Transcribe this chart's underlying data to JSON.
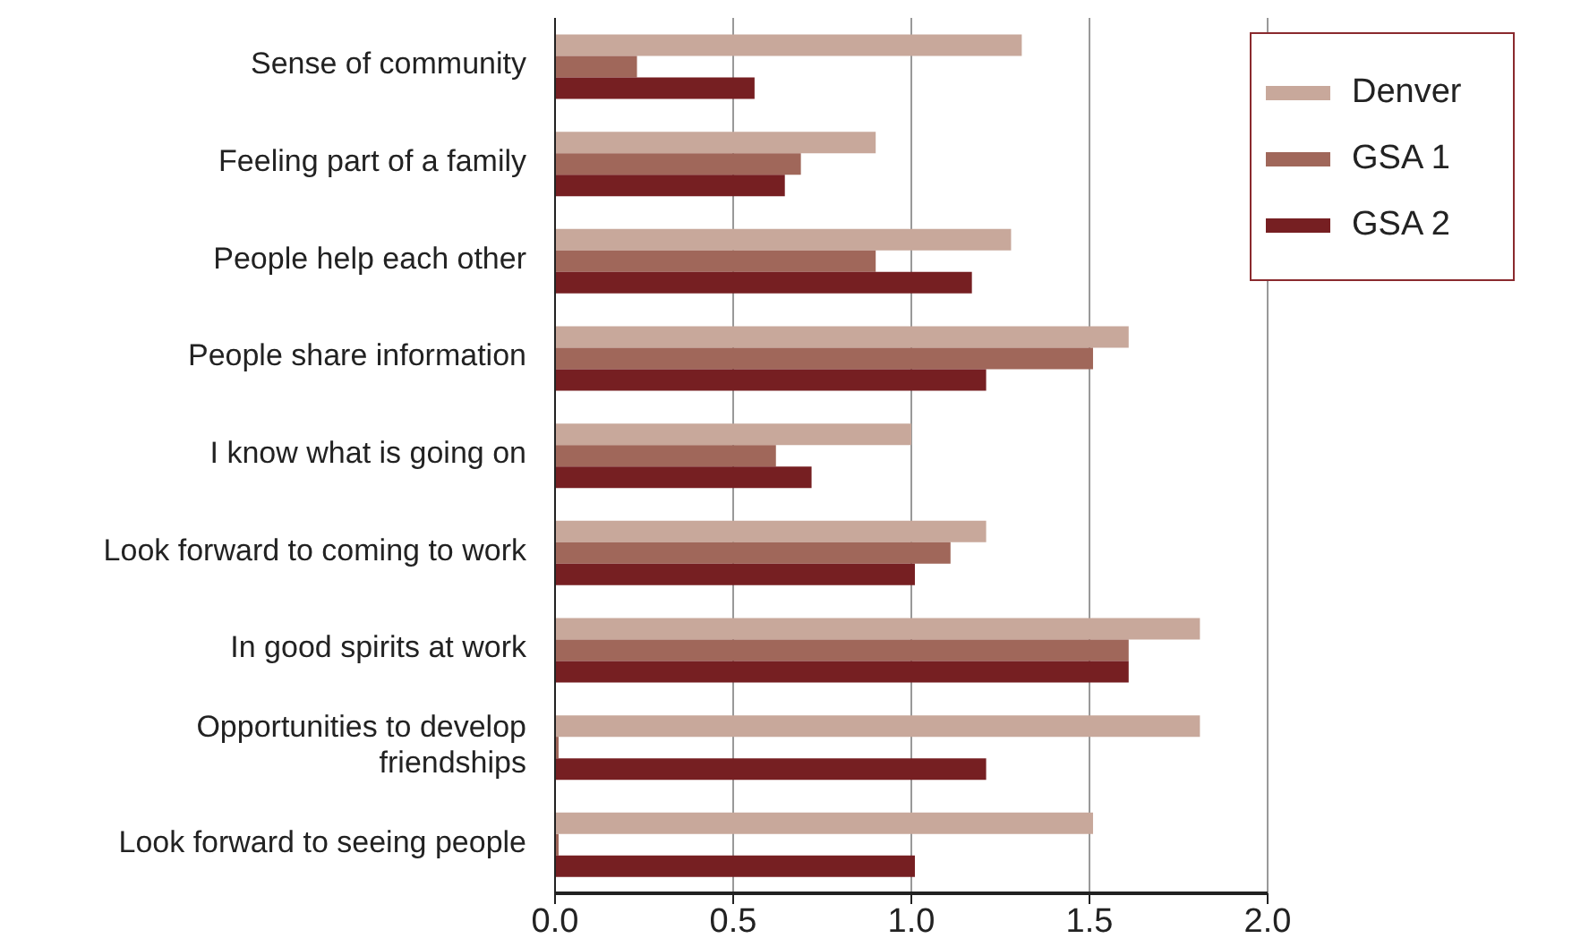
{
  "chart_data": {
    "type": "bar",
    "orientation": "horizontal",
    "categories": [
      "Sense of community",
      "Feeling part of a family",
      "People help each other",
      "People share information",
      "I know what is going on",
      "Look forward to coming to work",
      "In good spirits at work",
      "Opportunities to develop friendships",
      "Look forward to seeing people"
    ],
    "series": [
      {
        "name": "Denver",
        "color": "#c8a89b",
        "values": [
          1.31,
          0.9,
          1.28,
          1.61,
          1.0,
          1.21,
          1.81,
          1.81,
          1.51
        ]
      },
      {
        "name": "GSA 1",
        "color": "#a0675a",
        "values": [
          0.23,
          0.69,
          0.9,
          1.51,
          0.62,
          1.11,
          1.61,
          0.01,
          0.01
        ]
      },
      {
        "name": "GSA 2",
        "color": "#761f22",
        "values": [
          0.56,
          0.645,
          1.17,
          1.21,
          0.72,
          1.01,
          1.61,
          1.21,
          1.01
        ]
      }
    ],
    "xlim": [
      0,
      2.0
    ],
    "xticks": [
      {
        "value": 0,
        "label": "0.0"
      },
      0.5,
      {
        "value": 1,
        "label": "1.0"
      },
      1.5,
      {
        "value": 2,
        "label": "2.0"
      }
    ],
    "grid": "x",
    "legend": "top right"
  }
}
